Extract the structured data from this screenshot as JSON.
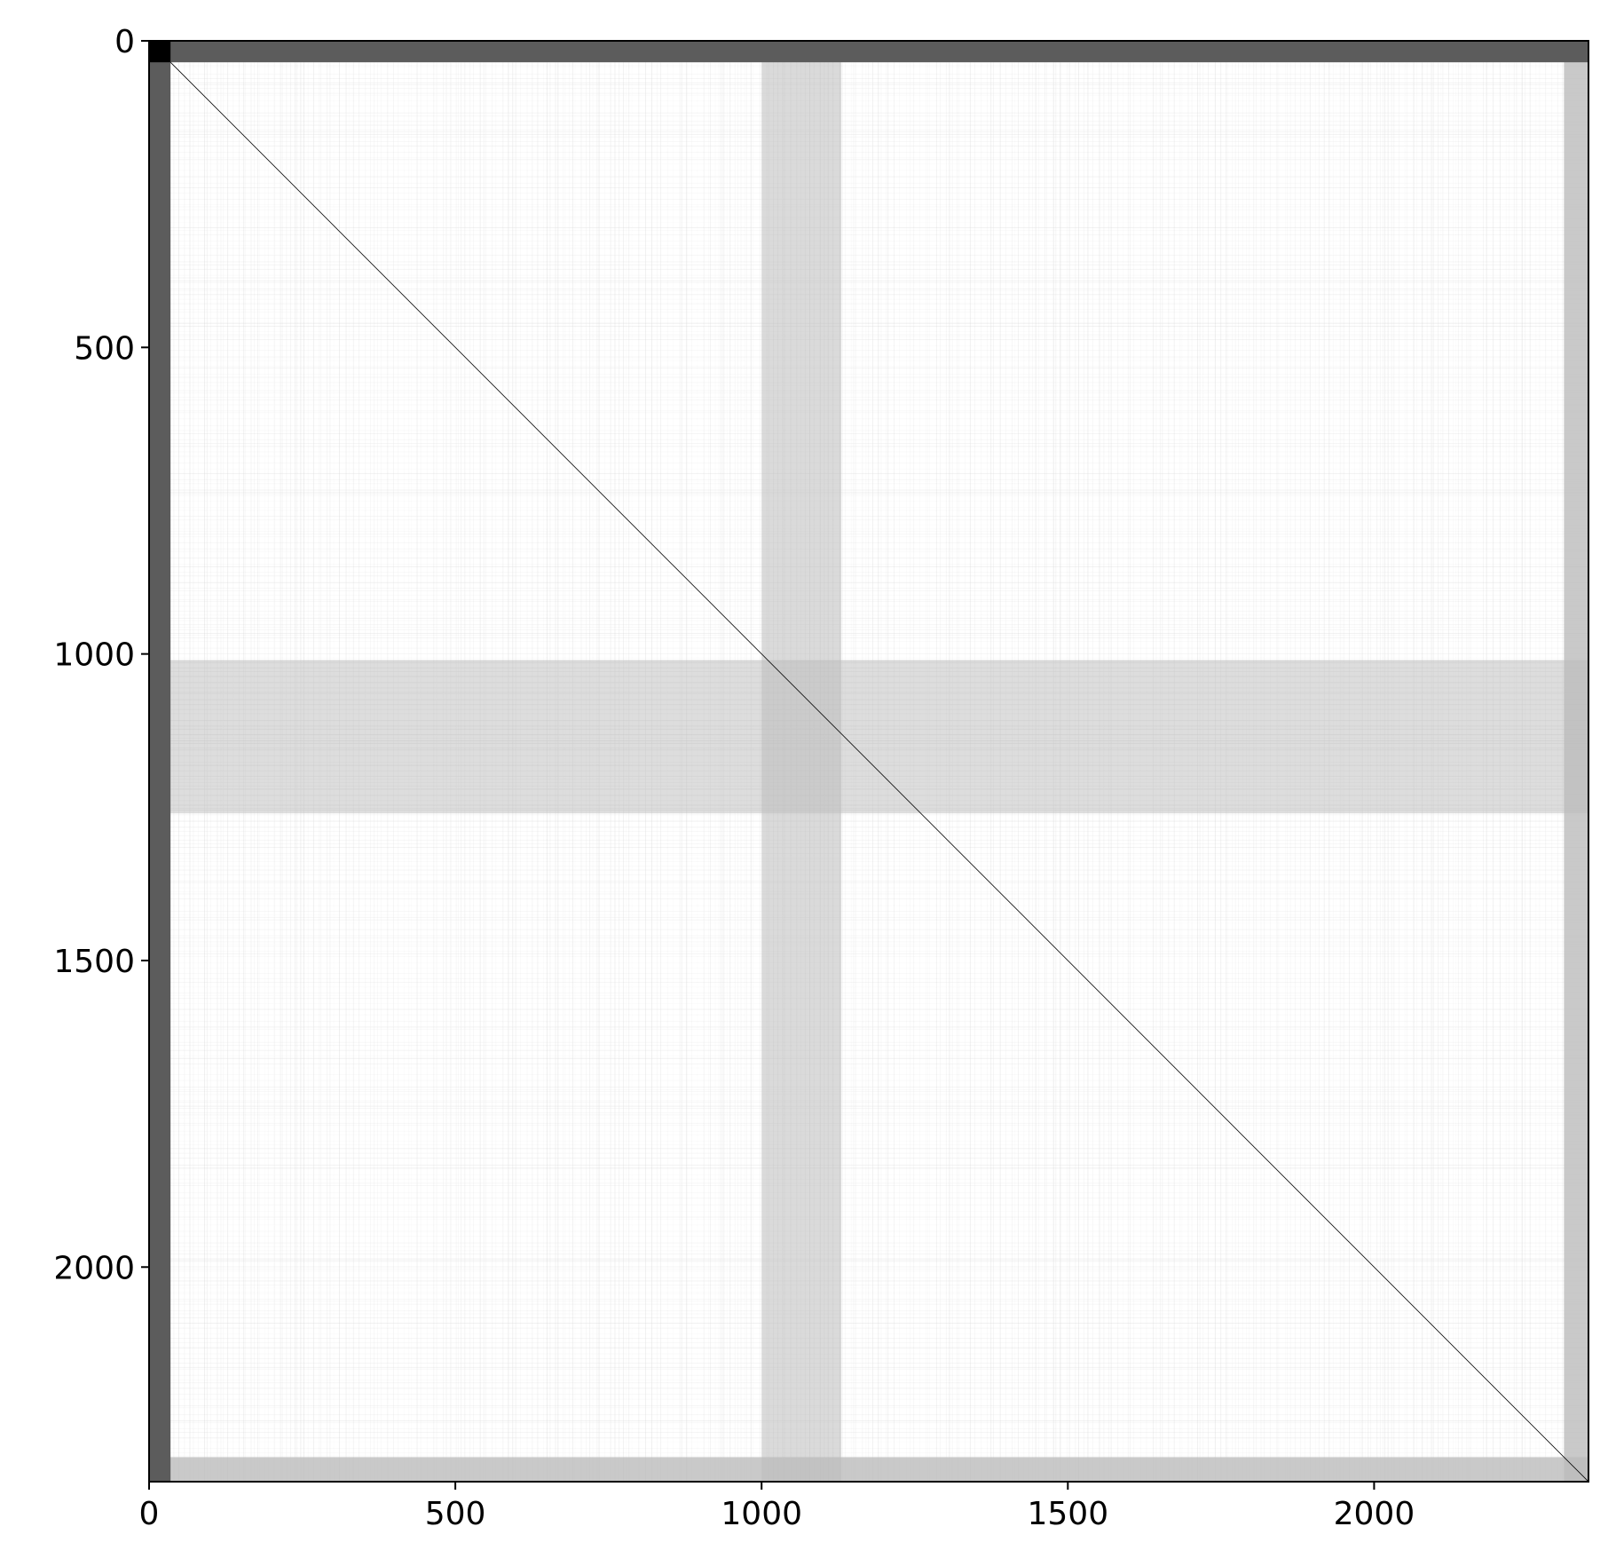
{
  "chart_data": {
    "type": "heatmap",
    "title": "",
    "xlabel": "",
    "ylabel": "",
    "n": 2350,
    "xlim": [
      0,
      2350
    ],
    "ylim": [
      2350,
      0
    ],
    "y_axis_inverted": true,
    "colormap": "gray_r",
    "grid": false,
    "x_ticks": [
      0,
      500,
      1000,
      1500,
      2000
    ],
    "y_ticks": [
      0,
      500,
      1000,
      1500,
      2000
    ],
    "x_tick_labels": [
      "0",
      "500",
      "1000",
      "1500",
      "2000"
    ],
    "y_tick_labels": [
      "0",
      "500",
      "1000",
      "1500",
      "2000"
    ],
    "description_blocks": {
      "dark_top_rows": [
        0,
        35
      ],
      "dark_left_cols": [
        0,
        35
      ],
      "darkest_corner": [
        0,
        35
      ],
      "dense_vertical_band_cols": [
        1000,
        1130
      ],
      "dense_horizontal_band_rows": [
        1010,
        1260
      ],
      "right_dense_cols": [
        2310,
        2350
      ],
      "bottom_dense_rows": [
        2310,
        2350
      ],
      "diagonal": true
    }
  },
  "colors": {
    "background": "#ffffff",
    "matrix_base": "#ffffff",
    "dark_band": "#5c5c5c",
    "darkest_block": "#000000",
    "sparse_line": "#d9d9d9",
    "dense_band": "#bcbcbc",
    "diagonal": "#000000",
    "axes": "#000000"
  }
}
